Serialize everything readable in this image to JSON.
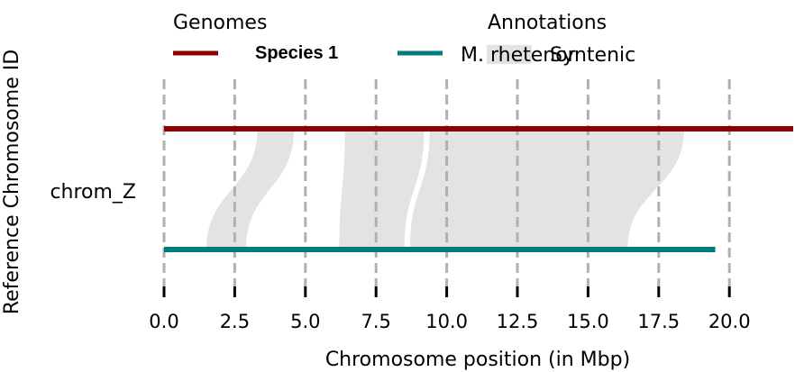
{
  "chart_data": {
    "type": "synteny",
    "xlabel": "Chromosome position (in Mbp)",
    "ylabel": "Reference Chromosome ID",
    "xlim": [
      0,
      22.3
    ],
    "xticks": [
      0.0,
      2.5,
      5.0,
      7.5,
      10.0,
      12.5,
      15.0,
      17.5,
      20.0
    ],
    "xtick_labels": [
      "0.0",
      "2.5",
      "5.0",
      "7.5",
      "10.0",
      "12.5",
      "15.0",
      "17.5",
      "20.0"
    ],
    "chromosome": "chrom_Z",
    "genomes": [
      {
        "name": "Species 1",
        "start": 0.0,
        "end": 22.3,
        "color": "#8b0000",
        "row": "top"
      },
      {
        "name": "M. rhetenor",
        "start": 0.0,
        "end": 19.5,
        "color": "#007b7b",
        "row": "bottom"
      }
    ],
    "syntenic_blocks": [
      {
        "top": [
          3.3,
          4.6
        ],
        "bottom": [
          1.5,
          2.9
        ]
      },
      {
        "top": [
          6.4,
          9.2
        ],
        "bottom": [
          6.2,
          8.5
        ]
      },
      {
        "top": [
          9.4,
          18.4
        ],
        "bottom": [
          8.7,
          16.4
        ]
      }
    ],
    "legend": {
      "genomes_title": "Genomes",
      "annotations_title": "Annotations",
      "annotations": [
        {
          "label": "Syntenic",
          "color": "#e3e3e3"
        }
      ]
    },
    "colors": {
      "syntenic": "#e3e3e3",
      "gridline": "#b0b0b0"
    }
  }
}
